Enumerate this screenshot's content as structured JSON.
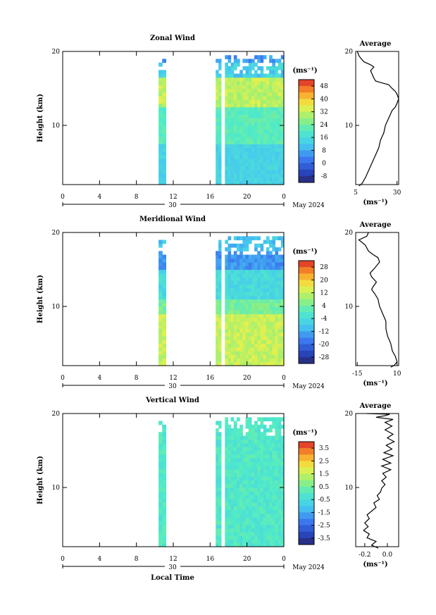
{
  "chart_data": [
    {
      "type": "heatmap",
      "title": "Zonal Wind",
      "ylabel": "Height (km)",
      "yticks": [
        "20",
        "10"
      ],
      "ylim": [
        2,
        20
      ],
      "xticks": [
        "0",
        "4",
        "8",
        "12",
        "16",
        "20",
        "0"
      ],
      "xlim": [
        0,
        24
      ],
      "day_label": "30",
      "month_label": "May 2024",
      "colorbar": {
        "unit": "(ms⁻¹)",
        "ticks": [
          "48",
          "40",
          "32",
          "24",
          "16",
          "8",
          "0",
          "-8"
        ],
        "min": -12,
        "max": 52
      },
      "profile": {
        "title": "Average",
        "yticks": [
          "20",
          "10"
        ],
        "xticks": [
          "5",
          "30"
        ],
        "xlabel": "(ms⁻¹)",
        "xlim": [
          5,
          31
        ],
        "points": [
          [
            6,
            20
          ],
          [
            7,
            19.4
          ],
          [
            8,
            19.1
          ],
          [
            10,
            18.6
          ],
          [
            14,
            18.2
          ],
          [
            16,
            17.9
          ],
          [
            14,
            17.4
          ],
          [
            15,
            16.9
          ],
          [
            16,
            16.4
          ],
          [
            17,
            16
          ],
          [
            20,
            15.8
          ],
          [
            25,
            15.5
          ],
          [
            27,
            15
          ],
          [
            29,
            14.6
          ],
          [
            30,
            14.2
          ],
          [
            31,
            13.6
          ],
          [
            30,
            13
          ],
          [
            29,
            12.5
          ],
          [
            27,
            12
          ],
          [
            26,
            11.5
          ],
          [
            25,
            11
          ],
          [
            23,
            10
          ],
          [
            22,
            9
          ],
          [
            20,
            8
          ],
          [
            19,
            7
          ],
          [
            17,
            6
          ],
          [
            15,
            5
          ],
          [
            13,
            4
          ],
          [
            11,
            3
          ],
          [
            9,
            2.2
          ],
          [
            7,
            1.8
          ]
        ]
      }
    },
    {
      "type": "heatmap",
      "title": "Meridional Wind",
      "ylabel": "Height (km)",
      "yticks": [
        "20",
        "10"
      ],
      "ylim": [
        2,
        20
      ],
      "xticks": [
        "0",
        "4",
        "8",
        "12",
        "16",
        "20",
        "0"
      ],
      "xlim": [
        0,
        24
      ],
      "day_label": "30",
      "month_label": "May 2024",
      "colorbar": {
        "unit": "(ms⁻¹)",
        "ticks": [
          "28",
          "20",
          "12",
          "4",
          "-4",
          "-12",
          "-20",
          "-28"
        ],
        "min": -32,
        "max": 32
      },
      "profile": {
        "title": "Average",
        "yticks": [
          "20",
          "10"
        ],
        "xticks": [
          "-15",
          "10"
        ],
        "xlabel": "(ms⁻¹)",
        "xlim": [
          -16,
          11
        ],
        "points": [
          [
            -8,
            20
          ],
          [
            -9,
            19.5
          ],
          [
            -14,
            19
          ],
          [
            -10,
            18.3
          ],
          [
            -8,
            17.5
          ],
          [
            -5,
            17
          ],
          [
            -2,
            16.6
          ],
          [
            -1,
            16
          ],
          [
            -4,
            15.2
          ],
          [
            -7,
            14.5
          ],
          [
            -6,
            14
          ],
          [
            -3,
            13.3
          ],
          [
            -5,
            12.7
          ],
          [
            -6,
            12.3
          ],
          [
            -4,
            11.7
          ],
          [
            -2,
            11
          ],
          [
            -1,
            10
          ],
          [
            1,
            9
          ],
          [
            3,
            8
          ],
          [
            3,
            7
          ],
          [
            4,
            6
          ],
          [
            6,
            5
          ],
          [
            7,
            4
          ],
          [
            9,
            3.2
          ],
          [
            10,
            2.5
          ],
          [
            8,
            2
          ],
          [
            6,
            1.8
          ]
        ]
      }
    },
    {
      "type": "heatmap",
      "title": "Vertical Wind",
      "ylabel": "Height (km)",
      "yticks": [
        "20",
        "10"
      ],
      "ylim": [
        2,
        20
      ],
      "xticks": [
        "0",
        "4",
        "8",
        "12",
        "16",
        "20",
        "0"
      ],
      "xlim": [
        0,
        24
      ],
      "day_label": "30",
      "month_label": "May 2024",
      "xlabel": "Local Time",
      "colorbar": {
        "unit": "(ms⁻¹)",
        "ticks": [
          "3.5",
          "2.5",
          "1.5",
          "0.5",
          "-0.5",
          "-1.5",
          "-2.5",
          "-3.5"
        ],
        "min": -4,
        "max": 4
      },
      "profile": {
        "title": "Average",
        "yticks": [
          "20",
          "10"
        ],
        "xticks": [
          "-0.2",
          "0.0"
        ],
        "xlabel": "(ms⁻¹)",
        "xlim": [
          -0.28,
          0.1
        ],
        "points": [
          [
            -0.18,
            20
          ],
          [
            0.02,
            19.9
          ],
          [
            -0.02,
            19.7
          ],
          [
            -0.1,
            19.5
          ],
          [
            0.05,
            19.2
          ],
          [
            -0.02,
            18.8
          ],
          [
            0.04,
            18.3
          ],
          [
            -0.02,
            17.8
          ],
          [
            0.05,
            17.2
          ],
          [
            0.0,
            16.7
          ],
          [
            0.06,
            16.2
          ],
          [
            -0.01,
            15.7
          ],
          [
            0.04,
            15.2
          ],
          [
            -0.03,
            14.7
          ],
          [
            0.05,
            14.3
          ],
          [
            -0.04,
            13.8
          ],
          [
            0.03,
            13.3
          ],
          [
            -0.05,
            12.9
          ],
          [
            0.03,
            12.4
          ],
          [
            -0.04,
            11.9
          ],
          [
            -0.01,
            11.4
          ],
          [
            -0.05,
            10.9
          ],
          [
            -0.02,
            10.4
          ],
          [
            -0.05,
            9.9
          ],
          [
            -0.06,
            9.4
          ],
          [
            -0.09,
            8.9
          ],
          [
            -0.07,
            8.4
          ],
          [
            -0.12,
            7.9
          ],
          [
            -0.1,
            7.3
          ],
          [
            -0.14,
            6.8
          ],
          [
            -0.18,
            6.3
          ],
          [
            -0.16,
            5.8
          ],
          [
            -0.2,
            5.2
          ],
          [
            -0.17,
            4.7
          ],
          [
            -0.21,
            4.2
          ],
          [
            -0.16,
            3.7
          ],
          [
            -0.18,
            3.2
          ],
          [
            -0.1,
            2.7
          ],
          [
            -0.14,
            2.2
          ],
          [
            -0.08,
            1.8
          ]
        ]
      }
    }
  ]
}
